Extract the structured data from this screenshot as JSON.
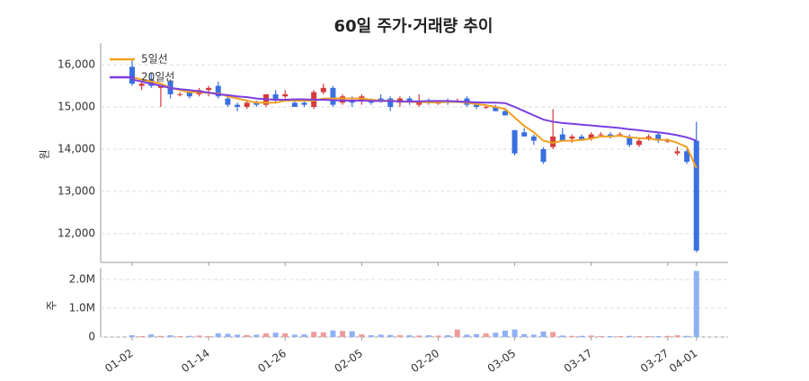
{
  "chart_data": [
    {
      "type": "candlestick",
      "title": "60일 주가·거래량 추이",
      "ylabel": "원",
      "up_color": "#d63a3a",
      "down_color": "#3a6fe0",
      "open": [
        15950,
        15500,
        15650,
        15450,
        15600,
        15300,
        15350,
        15300,
        15400,
        15500,
        15200,
        15050,
        15000,
        15100,
        15050,
        15300,
        15250,
        15100,
        15100,
        15000,
        15350,
        15450,
        15100,
        15150,
        15150,
        15150,
        15200,
        15200,
        15100,
        15200,
        15050,
        15150,
        15100,
        15150,
        15150,
        15200,
        15050,
        15000,
        15000,
        14900,
        14450,
        14400,
        14300,
        14000,
        14050,
        14350,
        14250,
        14300,
        14250,
        14350,
        14350,
        14350,
        14300,
        14100,
        14250,
        14350,
        14200,
        13900,
        13950,
        14200
      ],
      "high": [
        16100,
        15600,
        15800,
        15500,
        15650,
        15350,
        15400,
        15450,
        15500,
        15600,
        15250,
        15100,
        15150,
        15150,
        15300,
        15400,
        15400,
        15150,
        15200,
        15400,
        15550,
        15500,
        15300,
        15250,
        15300,
        15200,
        15300,
        15250,
        15250,
        15250,
        15300,
        15200,
        15150,
        15200,
        15200,
        15250,
        15100,
        15050,
        15050,
        14950,
        14450,
        14500,
        14350,
        14050,
        14950,
        14500,
        14350,
        14350,
        14400,
        14400,
        14400,
        14400,
        14350,
        14250,
        14350,
        14400,
        14250,
        14050,
        14000,
        14650
      ],
      "low": [
        15500,
        15400,
        15450,
        15000,
        15200,
        15250,
        15200,
        15250,
        15250,
        15200,
        15000,
        14900,
        14950,
        15000,
        15000,
        15100,
        15200,
        15000,
        15000,
        14950,
        15300,
        15000,
        15050,
        15000,
        15050,
        15050,
        15100,
        14900,
        15000,
        15050,
        15000,
        15050,
        15050,
        15050,
        15100,
        15000,
        14950,
        14950,
        14900,
        14800,
        13850,
        14300,
        14100,
        13650,
        14000,
        14200,
        14150,
        14200,
        14200,
        14300,
        14250,
        14300,
        14050,
        14050,
        14200,
        14150,
        14150,
        13850,
        13650,
        11550
      ],
      "close": [
        15550,
        15550,
        15500,
        15500,
        15300,
        15300,
        15250,
        15400,
        15450,
        15250,
        15050,
        15000,
        15100,
        15050,
        15300,
        15150,
        15300,
        15000,
        15050,
        15350,
        15450,
        15050,
        15250,
        15100,
        15250,
        15100,
        15150,
        15000,
        15200,
        15100,
        15150,
        15100,
        15100,
        15100,
        15150,
        15050,
        15000,
        15000,
        14900,
        14800,
        13900,
        14300,
        14200,
        13700,
        14300,
        14200,
        14300,
        14200,
        14350,
        14350,
        14300,
        14350,
        14100,
        14200,
        14300,
        14200,
        14200,
        13950,
        13700,
        11600
      ],
      "series": [
        {
          "name": "5일선",
          "color": "#f0a020",
          "values": [
            15700,
            15650,
            15600,
            15550,
            15450,
            15400,
            15350,
            15350,
            15330,
            15320,
            15250,
            15200,
            15150,
            15100,
            15100,
            15100,
            15150,
            15150,
            15150,
            15150,
            15200,
            15200,
            15200,
            15200,
            15200,
            15170,
            15150,
            15150,
            15130,
            15120,
            15120,
            15110,
            15110,
            15120,
            15120,
            15100,
            15070,
            15040,
            15000,
            14950,
            14750,
            14550,
            14400,
            14200,
            14150,
            14200,
            14200,
            14220,
            14250,
            14300,
            14300,
            14320,
            14280,
            14260,
            14250,
            14220,
            14220,
            14150,
            14050,
            13550
          ]
        },
        {
          "name": "20일선",
          "color": "#7b3fe0",
          "values": [
            15650,
            15600,
            15550,
            15500,
            15450,
            15420,
            15400,
            15370,
            15340,
            15300,
            15280,
            15250,
            15230,
            15200,
            15180,
            15170,
            15170,
            15180,
            15180,
            15170,
            15170,
            15160,
            15150,
            15150,
            15150,
            15140,
            15140,
            15140,
            15130,
            15130,
            15130,
            15140,
            15140,
            15140,
            15130,
            15120,
            15110,
            15100,
            15100,
            15090,
            15000,
            14900,
            14800,
            14700,
            14650,
            14620,
            14600,
            14580,
            14560,
            14540,
            14520,
            14500,
            14470,
            14450,
            14420,
            14400,
            14370,
            14330,
            14280,
            14200
          ]
        }
      ],
      "ylim": [
        11320,
        16510
      ],
      "yticks": [
        {
          "value": 12000,
          "label": "12,000"
        },
        {
          "value": 13000,
          "label": "13,000"
        },
        {
          "value": 14000,
          "label": "14,000"
        },
        {
          "value": 15000,
          "label": "15,000"
        },
        {
          "value": 16000,
          "label": "16,000"
        }
      ],
      "grid": true,
      "legend": "top-left"
    },
    {
      "type": "bar",
      "ylabel": "주",
      "up_color": "#f09a9a",
      "down_color": "#8fb0f5",
      "categories": [
        "01-02",
        null,
        null,
        null,
        null,
        null,
        null,
        null,
        "01-14",
        null,
        null,
        null,
        null,
        null,
        null,
        null,
        "01-26",
        null,
        null,
        null,
        null,
        null,
        null,
        null,
        "02-05",
        null,
        null,
        null,
        null,
        null,
        null,
        null,
        "02-20",
        null,
        null,
        null,
        null,
        null,
        null,
        null,
        "03-05",
        null,
        null,
        null,
        null,
        null,
        null,
        null,
        "03-17",
        null,
        null,
        null,
        null,
        null,
        null,
        null,
        "03-27",
        null,
        null,
        "04-01"
      ],
      "values": [
        60000,
        30000,
        90000,
        40000,
        60000,
        30000,
        40000,
        50000,
        30000,
        130000,
        110000,
        80000,
        70000,
        80000,
        130000,
        150000,
        130000,
        80000,
        90000,
        180000,
        160000,
        230000,
        210000,
        200000,
        90000,
        60000,
        80000,
        70000,
        60000,
        60000,
        50000,
        60000,
        50000,
        60000,
        260000,
        80000,
        100000,
        130000,
        150000,
        220000,
        260000,
        100000,
        80000,
        190000,
        170000,
        50000,
        40000,
        40000,
        50000,
        30000,
        30000,
        30000,
        40000,
        30000,
        30000,
        30000,
        40000,
        60000,
        40000,
        2300000
      ],
      "ylim": [
        0,
        2410000
      ],
      "yticks": [
        0,
        {
          "value": 1000000,
          "label": "1.0M"
        },
        {
          "value": 2000000,
          "label": "2.0M"
        }
      ],
      "grid": true
    }
  ]
}
